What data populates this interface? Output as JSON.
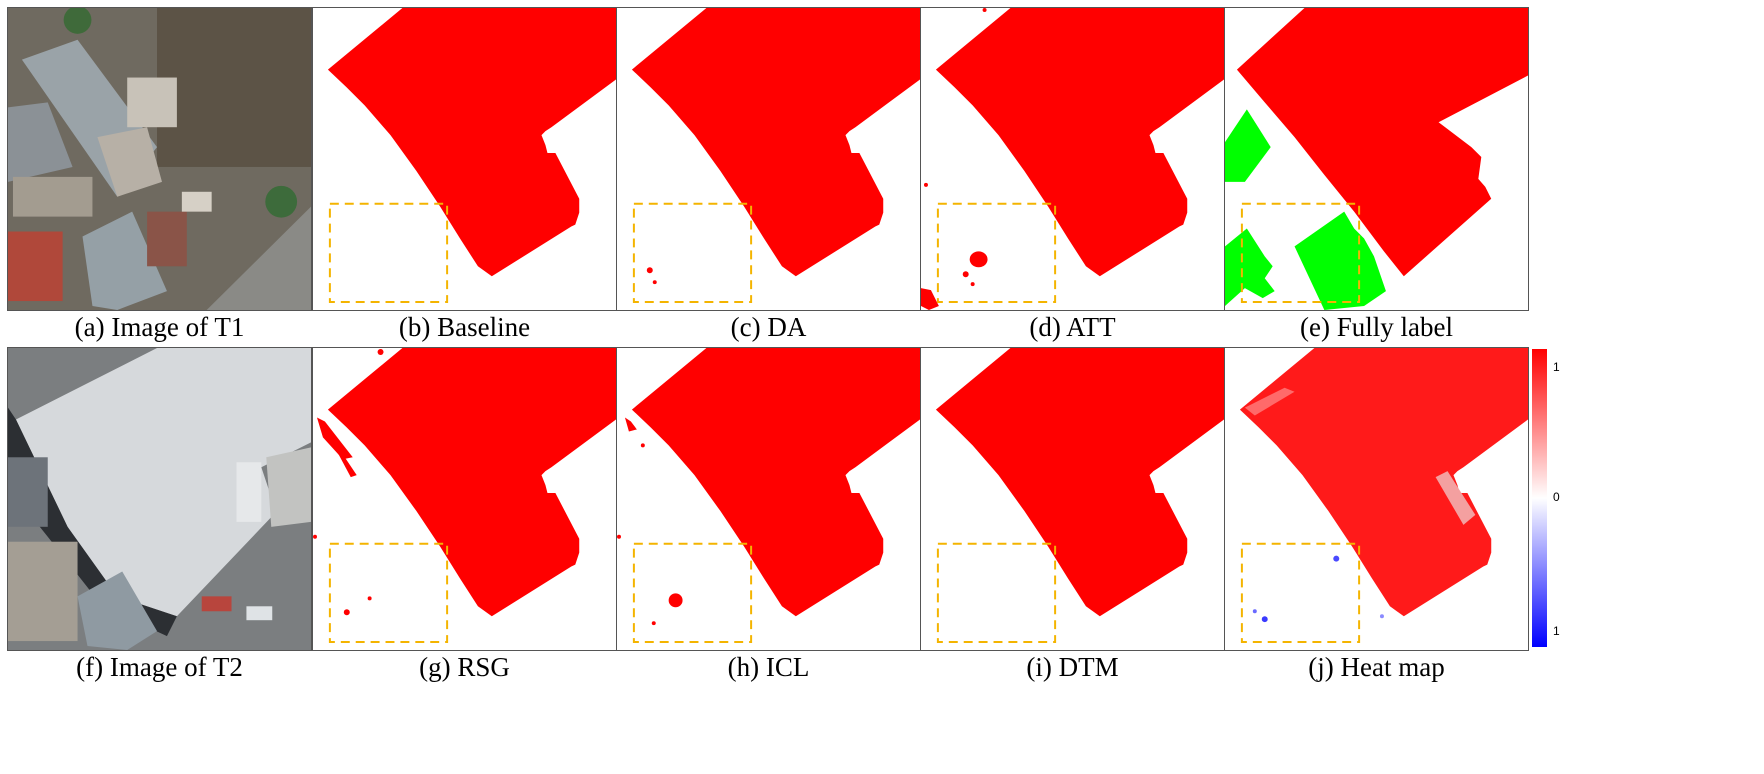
{
  "panels": [
    {
      "id": "a",
      "caption": "(a) Image of T1"
    },
    {
      "id": "b",
      "caption": "(b) Baseline"
    },
    {
      "id": "c",
      "caption": "(c) DA"
    },
    {
      "id": "d",
      "caption": "(d) ATT"
    },
    {
      "id": "e",
      "caption": "(e) Fully label"
    },
    {
      "id": "f",
      "caption": "(f) Image of T2"
    },
    {
      "id": "g",
      "caption": "(g) RSG"
    },
    {
      "id": "h",
      "caption": "(h) ICL"
    },
    {
      "id": "i",
      "caption": "(i) DTM"
    },
    {
      "id": "j",
      "caption": "(j) Heat map"
    }
  ],
  "colorbar": {
    "top": "1",
    "mid": "0",
    "bottom": "1"
  },
  "colors": {
    "change": "#ff0000",
    "new": "#00ff00",
    "box": "#f4b400",
    "neg": "#0000ff"
  }
}
